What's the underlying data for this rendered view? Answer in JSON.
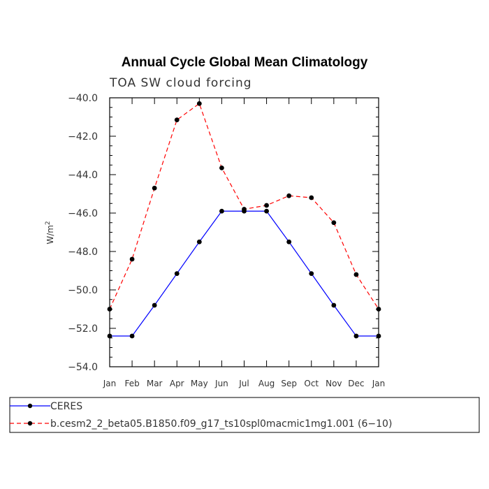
{
  "chart_data": {
    "type": "line",
    "title": "Annual Cycle Global Mean Climatology",
    "subtitle": "TOA SW cloud forcing",
    "ylabel_main": "W/m",
    "ylabel_sup": "2",
    "xlabel": "",
    "categories": [
      "Jan",
      "Feb",
      "Mar",
      "Apr",
      "May",
      "Jun",
      "Jul",
      "Aug",
      "Sep",
      "Oct",
      "Nov",
      "Dec",
      "Jan"
    ],
    "ylim": [
      -54.0,
      -40.0
    ],
    "yticks": [
      -54.0,
      -52.0,
      -50.0,
      -48.0,
      -46.0,
      -44.0,
      -42.0,
      -40.0
    ],
    "ytick_labels": [
      "−54.0",
      "−52.0",
      "−50.0",
      "−48.0",
      "−46.0",
      "−44.0",
      "−42.0",
      "−40.0"
    ],
    "series": [
      {
        "name": "CERES",
        "color": "#0000ff",
        "style": "solid",
        "values": [
          -52.4,
          -52.4,
          -50.8,
          -49.15,
          -47.5,
          -45.9,
          -45.9,
          -45.9,
          -47.5,
          -49.15,
          -50.8,
          -52.4,
          -52.4
        ]
      },
      {
        "name": "b.cesm2_2_beta05.B1850.f09_g17_ts10spl0macmic1mg1.001 (6−10)",
        "color": "#ff0000",
        "style": "dashed",
        "values": [
          -51.0,
          -48.4,
          -44.7,
          -41.15,
          -40.3,
          -43.65,
          -45.8,
          -45.6,
          -45.1,
          -45.2,
          -46.5,
          -49.2,
          -51.0
        ]
      }
    ]
  }
}
